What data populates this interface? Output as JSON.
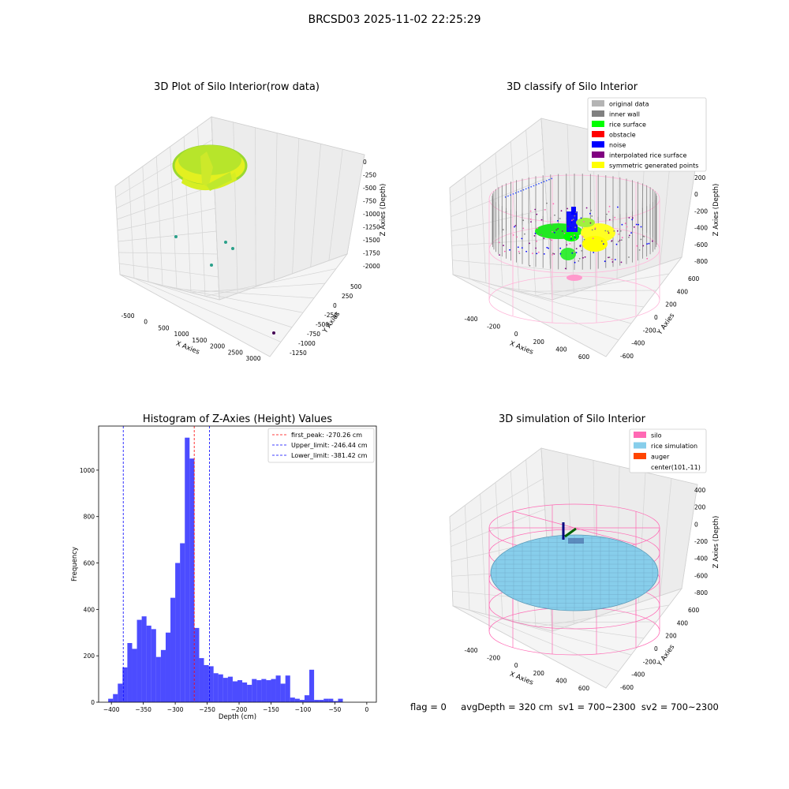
{
  "suptitle": "BRCSD03 2025-11-02 22:25:29",
  "panels": {
    "raw": {
      "title": "3D Plot of Silo Interior(row data)",
      "xlabel": "X Axies",
      "ylabel": "Y Axies",
      "zlabel": "Z Axies (Depth)",
      "xticks": [
        "-500",
        "0",
        "500",
        "1000",
        "1500",
        "2000",
        "2500",
        "3000"
      ],
      "yticks": [
        "500",
        "250",
        "0",
        "-250",
        "-500",
        "-750",
        "-1000",
        "-1250"
      ],
      "zticks": [
        "0",
        "-250",
        "-500",
        "-750",
        "-1000",
        "-1250",
        "-1500",
        "-1750",
        "-2000"
      ]
    },
    "classify": {
      "title": "3D classify of Silo Interior",
      "xlabel": "X Axies",
      "ylabel": "Y Axies",
      "zlabel": "Z Axies (Depth)",
      "xticks": [
        "-400",
        "-200",
        "0",
        "200",
        "400",
        "600"
      ],
      "yticks": [
        "600",
        "400",
        "200",
        "0",
        "-200",
        "-400",
        "-600"
      ],
      "zticks": [
        "200",
        "0",
        "-200",
        "-400",
        "-600",
        "-800"
      ],
      "legend": [
        {
          "label": "original data",
          "color": "#b4b4b4"
        },
        {
          "label": "inner wall",
          "color": "#808080"
        },
        {
          "label": "rice surface",
          "color": "#00ff00"
        },
        {
          "label": "obstacle",
          "color": "#ff0000"
        },
        {
          "label": "noise",
          "color": "#0000ff"
        },
        {
          "label": "interpolated rice surface",
          "color": "#800080"
        },
        {
          "label": "symmetric generated points",
          "color": "#ffff00"
        }
      ]
    },
    "simulation": {
      "title": "3D simulation of Silo Interior",
      "xlabel": "X Axies",
      "ylabel": "Y Axies",
      "zlabel": "Z Axies (Depth)",
      "xticks": [
        "-400",
        "-200",
        "0",
        "200",
        "400",
        "600"
      ],
      "yticks": [
        "600",
        "400",
        "200",
        "0",
        "-200",
        "-400",
        "-600"
      ],
      "zticks": [
        "400",
        "200",
        "0",
        "-200",
        "-400",
        "-600",
        "-800"
      ],
      "legend": [
        {
          "label": "silo",
          "color": "#ff69b4"
        },
        {
          "label": "rice simulation",
          "color": "#87ceeb"
        },
        {
          "label": "auger",
          "color": "#ff4500"
        },
        {
          "label": "center(101,-11)",
          "color": ""
        }
      ]
    }
  },
  "footer": {
    "flag": "flag = 0",
    "stats": "avgDepth = 320 cm  sv1 = 700~2300  sv2 = 700~2300"
  },
  "chart_data": [
    {
      "type": "bar",
      "title": "Histogram of Z-Axies (Height) Values",
      "xlabel": "Depth (cm)",
      "ylabel": "Frequency",
      "xlim": [
        -420,
        15
      ],
      "ylim": [
        0,
        1190
      ],
      "xticks": [
        -400,
        -350,
        -300,
        -250,
        -200,
        -150,
        -100,
        -50,
        0
      ],
      "yticks": [
        0,
        200,
        400,
        600,
        800,
        1000
      ],
      "bin_width": 7.5,
      "bin_start": -405,
      "values": [
        15,
        35,
        80,
        150,
        255,
        230,
        355,
        370,
        330,
        315,
        195,
        225,
        300,
        450,
        600,
        685,
        1140,
        1050,
        320,
        190,
        160,
        155,
        125,
        120,
        105,
        110,
        90,
        95,
        85,
        75,
        100,
        95,
        100,
        95,
        100,
        115,
        80,
        115,
        20,
        15,
        10,
        30,
        140,
        10,
        10,
        15,
        15,
        5,
        15
      ],
      "bar_color": "#0000ff",
      "vlines": [
        {
          "label": "first_peak: -270.26 cm",
          "value": -270.26,
          "color": "#ff0000"
        },
        {
          "label": "Upper_limit: -246.44 cm",
          "value": -246.44,
          "color": "#0000ff"
        },
        {
          "label": "Lower_limit: -381.42 cm",
          "value": -381.42,
          "color": "#0000ff"
        }
      ],
      "legend_position": "upper right"
    }
  ]
}
